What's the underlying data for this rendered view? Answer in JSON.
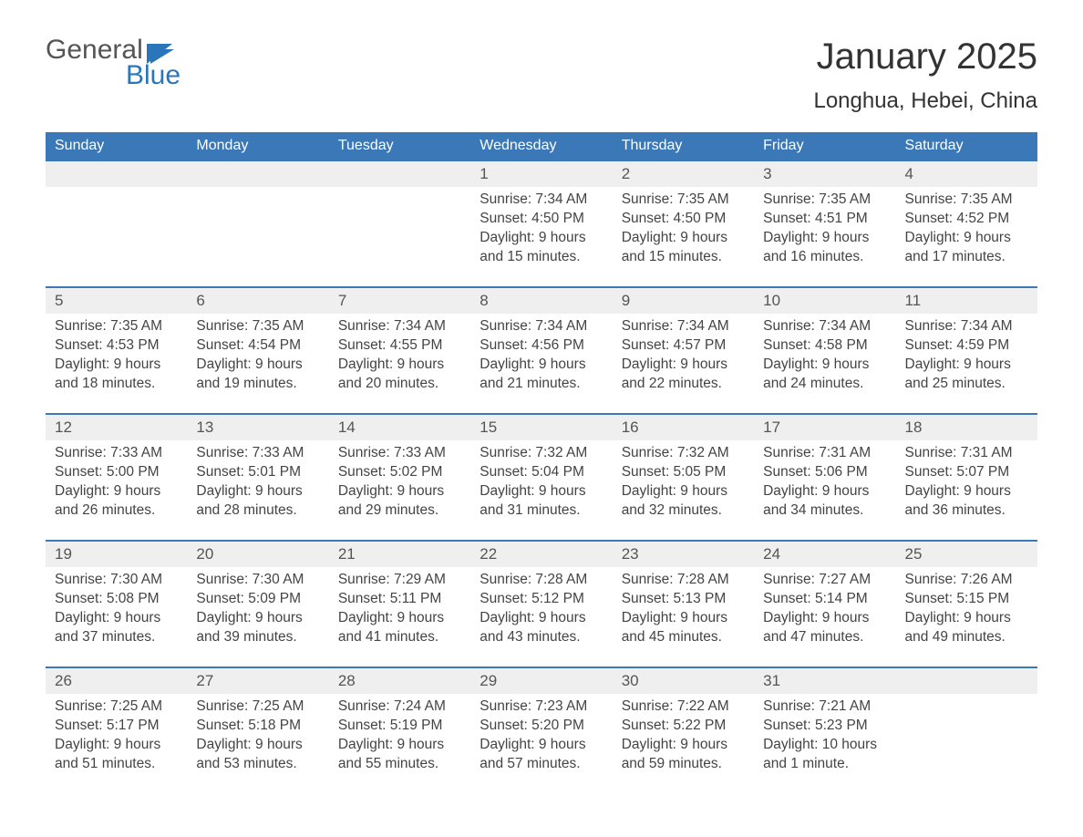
{
  "logo": {
    "word1": "General",
    "word2": "Blue"
  },
  "title": "January 2025",
  "location": "Longhua, Hebei, China",
  "colors": {
    "header_bg": "#3a78b8",
    "header_text": "#ffffff",
    "daynum_bg": "#efefef",
    "border_top": "#3a78b8",
    "body_text": "#444444",
    "logo_blue": "#2b76bb"
  },
  "day_headers": [
    "Sunday",
    "Monday",
    "Tuesday",
    "Wednesday",
    "Thursday",
    "Friday",
    "Saturday"
  ],
  "weeks": [
    [
      null,
      null,
      null,
      {
        "n": "1",
        "sr": "Sunrise: 7:34 AM",
        "ss": "Sunset: 4:50 PM",
        "d1": "Daylight: 9 hours",
        "d2": "and 15 minutes."
      },
      {
        "n": "2",
        "sr": "Sunrise: 7:35 AM",
        "ss": "Sunset: 4:50 PM",
        "d1": "Daylight: 9 hours",
        "d2": "and 15 minutes."
      },
      {
        "n": "3",
        "sr": "Sunrise: 7:35 AM",
        "ss": "Sunset: 4:51 PM",
        "d1": "Daylight: 9 hours",
        "d2": "and 16 minutes."
      },
      {
        "n": "4",
        "sr": "Sunrise: 7:35 AM",
        "ss": "Sunset: 4:52 PM",
        "d1": "Daylight: 9 hours",
        "d2": "and 17 minutes."
      }
    ],
    [
      {
        "n": "5",
        "sr": "Sunrise: 7:35 AM",
        "ss": "Sunset: 4:53 PM",
        "d1": "Daylight: 9 hours",
        "d2": "and 18 minutes."
      },
      {
        "n": "6",
        "sr": "Sunrise: 7:35 AM",
        "ss": "Sunset: 4:54 PM",
        "d1": "Daylight: 9 hours",
        "d2": "and 19 minutes."
      },
      {
        "n": "7",
        "sr": "Sunrise: 7:34 AM",
        "ss": "Sunset: 4:55 PM",
        "d1": "Daylight: 9 hours",
        "d2": "and 20 minutes."
      },
      {
        "n": "8",
        "sr": "Sunrise: 7:34 AM",
        "ss": "Sunset: 4:56 PM",
        "d1": "Daylight: 9 hours",
        "d2": "and 21 minutes."
      },
      {
        "n": "9",
        "sr": "Sunrise: 7:34 AM",
        "ss": "Sunset: 4:57 PM",
        "d1": "Daylight: 9 hours",
        "d2": "and 22 minutes."
      },
      {
        "n": "10",
        "sr": "Sunrise: 7:34 AM",
        "ss": "Sunset: 4:58 PM",
        "d1": "Daylight: 9 hours",
        "d2": "and 24 minutes."
      },
      {
        "n": "11",
        "sr": "Sunrise: 7:34 AM",
        "ss": "Sunset: 4:59 PM",
        "d1": "Daylight: 9 hours",
        "d2": "and 25 minutes."
      }
    ],
    [
      {
        "n": "12",
        "sr": "Sunrise: 7:33 AM",
        "ss": "Sunset: 5:00 PM",
        "d1": "Daylight: 9 hours",
        "d2": "and 26 minutes."
      },
      {
        "n": "13",
        "sr": "Sunrise: 7:33 AM",
        "ss": "Sunset: 5:01 PM",
        "d1": "Daylight: 9 hours",
        "d2": "and 28 minutes."
      },
      {
        "n": "14",
        "sr": "Sunrise: 7:33 AM",
        "ss": "Sunset: 5:02 PM",
        "d1": "Daylight: 9 hours",
        "d2": "and 29 minutes."
      },
      {
        "n": "15",
        "sr": "Sunrise: 7:32 AM",
        "ss": "Sunset: 5:04 PM",
        "d1": "Daylight: 9 hours",
        "d2": "and 31 minutes."
      },
      {
        "n": "16",
        "sr": "Sunrise: 7:32 AM",
        "ss": "Sunset: 5:05 PM",
        "d1": "Daylight: 9 hours",
        "d2": "and 32 minutes."
      },
      {
        "n": "17",
        "sr": "Sunrise: 7:31 AM",
        "ss": "Sunset: 5:06 PM",
        "d1": "Daylight: 9 hours",
        "d2": "and 34 minutes."
      },
      {
        "n": "18",
        "sr": "Sunrise: 7:31 AM",
        "ss": "Sunset: 5:07 PM",
        "d1": "Daylight: 9 hours",
        "d2": "and 36 minutes."
      }
    ],
    [
      {
        "n": "19",
        "sr": "Sunrise: 7:30 AM",
        "ss": "Sunset: 5:08 PM",
        "d1": "Daylight: 9 hours",
        "d2": "and 37 minutes."
      },
      {
        "n": "20",
        "sr": "Sunrise: 7:30 AM",
        "ss": "Sunset: 5:09 PM",
        "d1": "Daylight: 9 hours",
        "d2": "and 39 minutes."
      },
      {
        "n": "21",
        "sr": "Sunrise: 7:29 AM",
        "ss": "Sunset: 5:11 PM",
        "d1": "Daylight: 9 hours",
        "d2": "and 41 minutes."
      },
      {
        "n": "22",
        "sr": "Sunrise: 7:28 AM",
        "ss": "Sunset: 5:12 PM",
        "d1": "Daylight: 9 hours",
        "d2": "and 43 minutes."
      },
      {
        "n": "23",
        "sr": "Sunrise: 7:28 AM",
        "ss": "Sunset: 5:13 PM",
        "d1": "Daylight: 9 hours",
        "d2": "and 45 minutes."
      },
      {
        "n": "24",
        "sr": "Sunrise: 7:27 AM",
        "ss": "Sunset: 5:14 PM",
        "d1": "Daylight: 9 hours",
        "d2": "and 47 minutes."
      },
      {
        "n": "25",
        "sr": "Sunrise: 7:26 AM",
        "ss": "Sunset: 5:15 PM",
        "d1": "Daylight: 9 hours",
        "d2": "and 49 minutes."
      }
    ],
    [
      {
        "n": "26",
        "sr": "Sunrise: 7:25 AM",
        "ss": "Sunset: 5:17 PM",
        "d1": "Daylight: 9 hours",
        "d2": "and 51 minutes."
      },
      {
        "n": "27",
        "sr": "Sunrise: 7:25 AM",
        "ss": "Sunset: 5:18 PM",
        "d1": "Daylight: 9 hours",
        "d2": "and 53 minutes."
      },
      {
        "n": "28",
        "sr": "Sunrise: 7:24 AM",
        "ss": "Sunset: 5:19 PM",
        "d1": "Daylight: 9 hours",
        "d2": "and 55 minutes."
      },
      {
        "n": "29",
        "sr": "Sunrise: 7:23 AM",
        "ss": "Sunset: 5:20 PM",
        "d1": "Daylight: 9 hours",
        "d2": "and 57 minutes."
      },
      {
        "n": "30",
        "sr": "Sunrise: 7:22 AM",
        "ss": "Sunset: 5:22 PM",
        "d1": "Daylight: 9 hours",
        "d2": "and 59 minutes."
      },
      {
        "n": "31",
        "sr": "Sunrise: 7:21 AM",
        "ss": "Sunset: 5:23 PM",
        "d1": "Daylight: 10 hours",
        "d2": "and 1 minute."
      },
      null
    ]
  ]
}
